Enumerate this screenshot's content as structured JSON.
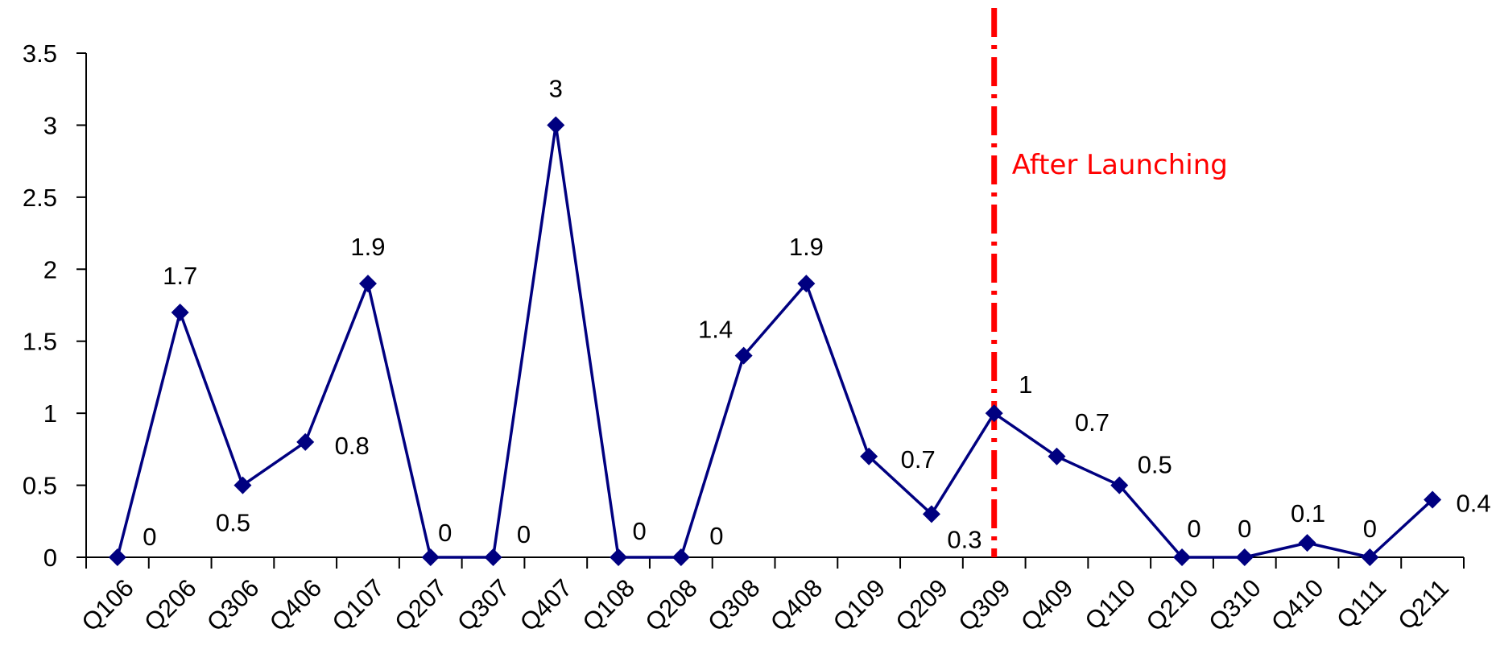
{
  "chart_data": {
    "type": "line",
    "title": "",
    "xlabel": "",
    "ylabel": "",
    "ylim": [
      0,
      3.5
    ],
    "yticks": [
      "0",
      "0.5",
      "1",
      "1.5",
      "2",
      "2.5",
      "3",
      "3.5"
    ],
    "grid": false,
    "legend": "none",
    "categories": [
      "Q106",
      "Q206",
      "Q306",
      "Q406",
      "Q107",
      "Q207",
      "Q307",
      "Q407",
      "Q108",
      "Q208",
      "Q308",
      "Q408",
      "Q109",
      "Q209",
      "Q309",
      "Q409",
      "Q110",
      "Q210",
      "Q310",
      "Q410",
      "Q111",
      "Q211"
    ],
    "series": [
      {
        "values": [
          0,
          1.7,
          0.5,
          0.8,
          1.9,
          0,
          0,
          3,
          0,
          0,
          1.4,
          1.9,
          0.7,
          0.3,
          1,
          0.7,
          0.5,
          0,
          0,
          0.1,
          0,
          0.4
        ],
        "labels": [
          "0",
          "1.7",
          "0.5",
          "0.8",
          "1.9",
          "0",
          "0",
          "3",
          "0",
          "0",
          "1.4",
          "1.9",
          "0.7",
          "0.3",
          "1",
          "0.7",
          "0.5",
          "0",
          "0",
          "0.1",
          "0",
          "0.4"
        ],
        "color": "#000080"
      }
    ],
    "annotations": [
      {
        "type": "vertical-line",
        "at": "Q309",
        "text": "After Launching",
        "color": "#ff0000"
      }
    ]
  }
}
